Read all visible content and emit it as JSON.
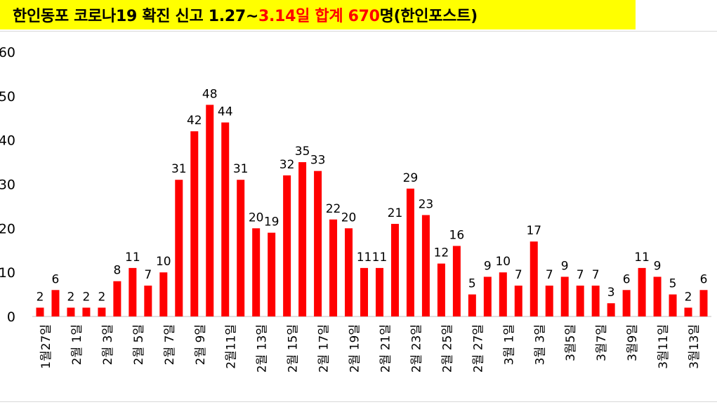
{
  "title": {
    "part1": "한인동포 코로나19 확진 신고 1.27~",
    "part2": "3.14일 합계 670",
    "part3": "명(한인포스트)"
  },
  "colors": {
    "bar": "#ff0000",
    "banner": "#ffff00",
    "title_highlight": "#ff0000",
    "text": "#000000"
  },
  "chart_data": {
    "type": "bar",
    "title": "한인동포 코로나19 확진 신고 1.27~3.14일 합계 670명(한인포스트)",
    "xlabel": "",
    "ylabel": "",
    "ylim": [
      0,
      60
    ],
    "yticks": [
      0,
      10,
      20,
      30,
      40,
      50,
      60
    ],
    "ytick_labels": [
      "0",
      "10",
      "20",
      "30",
      "40",
      "50",
      "60"
    ],
    "grid": false,
    "legend": "none",
    "x_tick_labels": [
      "1월27일",
      "2월 1일",
      "2월 3일",
      "2월 5일",
      "2월 7일",
      "2월 9일",
      "2월11일",
      "2월 13일",
      "2월 15일",
      "2월 17일",
      "2월 19일",
      "2월 21일",
      "2월 23일",
      "2월 25일",
      "2월 27일",
      "3월 1일",
      "3월 3일",
      "3월5일",
      "3월7일",
      "3월9일",
      "3월11일",
      "3월13일"
    ],
    "values": [
      2,
      6,
      2,
      2,
      2,
      8,
      11,
      7,
      10,
      31,
      42,
      48,
      44,
      31,
      20,
      19,
      32,
      35,
      33,
      22,
      20,
      11,
      11,
      21,
      29,
      23,
      12,
      16,
      5,
      9,
      10,
      7,
      17,
      7,
      9,
      7,
      7,
      3,
      6,
      11,
      9,
      5,
      2,
      6
    ]
  }
}
